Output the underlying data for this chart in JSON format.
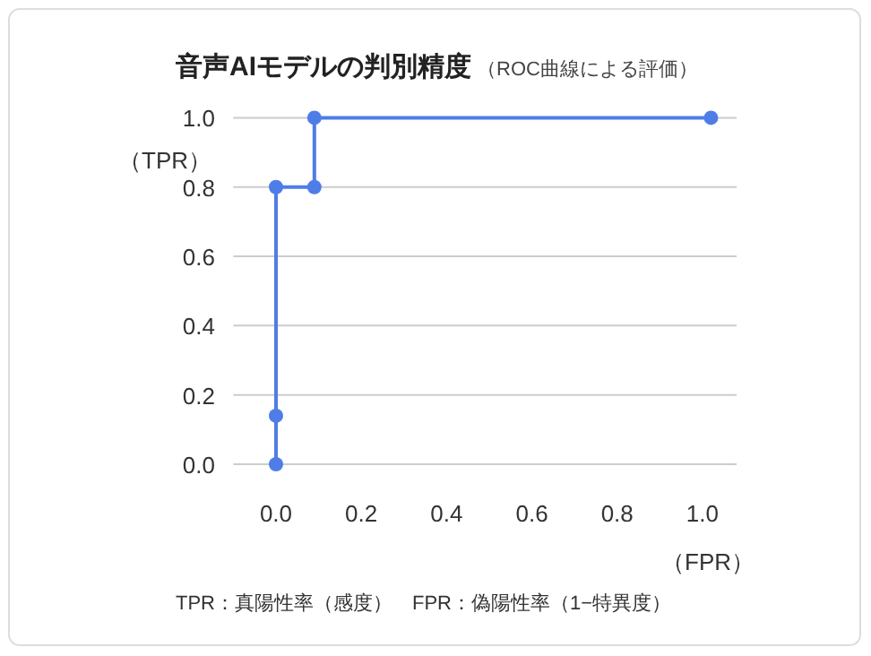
{
  "chart_data": {
    "type": "line",
    "title": "音声AIモデルの判別精度",
    "subtitle": "（ROC曲線による評価）",
    "xlabel": "（FPR）",
    "ylabel": "（TPR）",
    "annotations": [
      "TPR：真陽性率（感度）　FPR：偽陽性率（1−特異度）"
    ],
    "x": [
      0,
      0,
      0,
      0.09,
      0.09,
      1.02
    ],
    "series": [
      {
        "color": "#4f7de8",
        "values": [
          0,
          0.14,
          0.8,
          0.8,
          1.0,
          1.0
        ]
      }
    ],
    "xlim": [
      -0.1,
      1.08
    ],
    "ylim": [
      0,
      1
    ],
    "xticks": [
      {
        "value": 0,
        "label": "0.0"
      },
      0.2,
      0.4,
      0.6,
      0.8,
      {
        "value": 1,
        "label": "1.0"
      }
    ],
    "yticks": [
      {
        "value": 0,
        "label": "0.0"
      },
      0.2,
      0.4,
      0.6,
      0.8,
      {
        "value": 1,
        "label": "1.0"
      }
    ],
    "grid": "y",
    "marker": "circle",
    "line_style": "solid"
  }
}
